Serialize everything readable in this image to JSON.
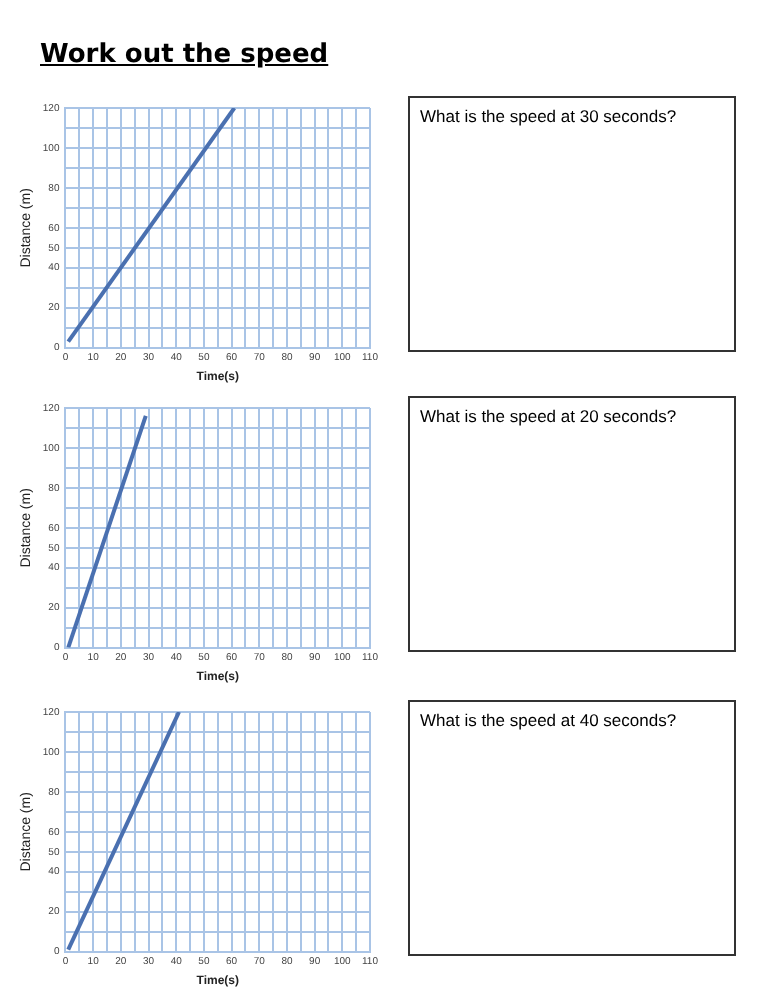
{
  "chart_data": [
    {
      "type": "line",
      "title": "Work out the speed",
      "xlabel": "Time(s)",
      "ylabel": "Distance (m)",
      "annotations": [
        "What is the speed at 30 seconds?"
      ],
      "series": [
        {
          "color": "#4a70b0",
          "x": [
            1,
            61
          ],
          "values": [
            3,
            120
          ]
        }
      ],
      "xlim": [
        0,
        110
      ],
      "ylim": [
        0,
        120
      ],
      "xticks": [
        0,
        {
          "value": 5,
          "label": null
        },
        10,
        {
          "value": 15,
          "label": null
        },
        20,
        {
          "value": 25,
          "label": null
        },
        30,
        {
          "value": 35,
          "label": null
        },
        40,
        {
          "value": 45,
          "label": null
        },
        50,
        {
          "value": 55,
          "label": null
        },
        60,
        {
          "value": 65,
          "label": null
        },
        70,
        {
          "value": 75,
          "label": null
        },
        80,
        {
          "value": 85,
          "label": null
        },
        90,
        {
          "value": 95,
          "label": null
        },
        100,
        {
          "value": 105,
          "label": null
        },
        110
      ],
      "yticks": [
        0,
        {
          "value": 10,
          "label": null
        },
        20,
        {
          "value": 30,
          "label": null
        },
        40,
        50,
        60,
        {
          "value": 70,
          "label": null
        },
        80,
        {
          "value": 90,
          "label": null
        },
        100,
        {
          "value": 110,
          "label": null
        },
        120
      ],
      "grid": true,
      "marker": "none",
      "line_style": "solid",
      "legend": false
    },
    {
      "type": "line",
      "xlabel": "Time(s)",
      "ylabel": "Distance (m)",
      "annotations": [
        "What is the speed at 20 seconds?"
      ],
      "series": [
        {
          "color": "#4a70b0",
          "x": [
            1,
            29
          ],
          "values": [
            0,
            116
          ]
        }
      ],
      "xlim": [
        0,
        110
      ],
      "ylim": [
        0,
        120
      ],
      "xticks": [
        0,
        {
          "value": 5,
          "label": null
        },
        10,
        {
          "value": 15,
          "label": null
        },
        20,
        {
          "value": 25,
          "label": null
        },
        30,
        {
          "value": 35,
          "label": null
        },
        40,
        {
          "value": 45,
          "label": null
        },
        50,
        {
          "value": 55,
          "label": null
        },
        60,
        {
          "value": 65,
          "label": null
        },
        70,
        {
          "value": 75,
          "label": null
        },
        80,
        {
          "value": 85,
          "label": null
        },
        90,
        {
          "value": 95,
          "label": null
        },
        100,
        {
          "value": 105,
          "label": null
        },
        110
      ],
      "yticks": [
        0,
        {
          "value": 10,
          "label": null
        },
        20,
        {
          "value": 30,
          "label": null
        },
        40,
        50,
        60,
        {
          "value": 70,
          "label": null
        },
        80,
        {
          "value": 90,
          "label": null
        },
        100,
        {
          "value": 110,
          "label": null
        },
        120
      ],
      "grid": true,
      "marker": "none",
      "line_style": "solid",
      "legend": false
    },
    {
      "type": "line",
      "xlabel": "Time(s)",
      "ylabel": "Distance (m)",
      "annotations": [
        "What is the speed at 40 seconds?"
      ],
      "series": [
        {
          "color": "#4a70b0",
          "x": [
            1,
            41
          ],
          "values": [
            1,
            120
          ]
        }
      ],
      "xlim": [
        0,
        110
      ],
      "ylim": [
        0,
        120
      ],
      "xticks": [
        0,
        {
          "value": 5,
          "label": null
        },
        10,
        {
          "value": 15,
          "label": null
        },
        20,
        {
          "value": 25,
          "label": null
        },
        30,
        {
          "value": 35,
          "label": null
        },
        40,
        {
          "value": 45,
          "label": null
        },
        50,
        {
          "value": 55,
          "label": null
        },
        60,
        {
          "value": 65,
          "label": null
        },
        70,
        {
          "value": 75,
          "label": null
        },
        80,
        {
          "value": 85,
          "label": null
        },
        90,
        {
          "value": 95,
          "label": null
        },
        100,
        {
          "value": 105,
          "label": null
        },
        110
      ],
      "yticks": [
        0,
        {
          "value": 10,
          "label": null
        },
        20,
        {
          "value": 30,
          "label": null
        },
        40,
        50,
        60,
        {
          "value": 70,
          "label": null
        },
        80,
        {
          "value": 90,
          "label": null
        },
        100,
        {
          "value": 110,
          "label": null
        },
        120
      ],
      "grid": true,
      "marker": "none",
      "line_style": "solid",
      "legend": false
    }
  ]
}
